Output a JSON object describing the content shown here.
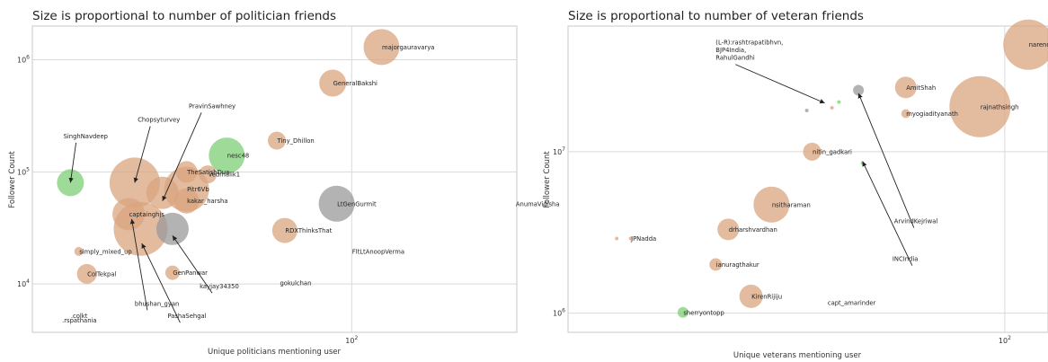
{
  "colors": {
    "default": "#d9a47f",
    "green": "#7fcf76",
    "gray": "#9a9a9a",
    "axis_bg": "#ffffff",
    "grid": "#d9d9d9",
    "arrow": "#222222"
  },
  "chart_data": [
    {
      "type": "scatter",
      "title": "Size is proportional to number of politician friends",
      "xlabel": "Unique politicians mentioning user",
      "ylabel": "Follower Count",
      "xscale": "log",
      "yscale": "log",
      "xlim": [
        17,
        250
      ],
      "ylim": [
        3700,
        2000000
      ],
      "x_ticks": [
        {
          "value": 100,
          "label": "10^2"
        }
      ],
      "y_ticks": [
        {
          "value": 10000,
          "label": "10^4"
        },
        {
          "value": 100000,
          "label": "10^5"
        },
        {
          "value": 1000000,
          "label": "10^6"
        }
      ],
      "grid": true,
      "points": [
        {
          "label": "majorgauravarya",
          "x": 118,
          "y": 1300000,
          "size": 20,
          "color": "default"
        },
        {
          "label": "GeneralBakshi",
          "x": 90,
          "y": 620000,
          "size": 15,
          "color": "default"
        },
        {
          "label": "Tiny_Dhillon",
          "x": 66,
          "y": 190000,
          "size": 10,
          "color": "default"
        },
        {
          "label": "nesc48",
          "x": 50,
          "y": 140000,
          "size": 20,
          "color": "green"
        },
        {
          "label": "TheSatishDua",
          "x": 40,
          "y": 100000,
          "size": 12,
          "color": "default"
        },
        {
          "label": "Vedmalik1",
          "x": 45,
          "y": 95000,
          "size": 10,
          "color": "default"
        },
        {
          "label": "Pitr6Vb",
          "x": 40,
          "y": 70000,
          "size": 25,
          "color": "default"
        },
        {
          "label": "SinghNavdeep",
          "x": 21,
          "y": 80000,
          "size": 15,
          "color": "green"
        },
        {
          "label": "Chopsyturvey",
          "x": 30,
          "y": 80000,
          "size": 28,
          "color": "default"
        },
        {
          "label": "PravinSawhney",
          "x": 35,
          "y": 65000,
          "size": 18,
          "color": "default"
        },
        {
          "label": "kakar_harsha",
          "x": 40,
          "y": 55000,
          "size": 14,
          "color": "default"
        },
        {
          "label": "LtGenGurmit",
          "x": 92,
          "y": 52000,
          "size": 20,
          "color": "gray"
        },
        {
          "label": "AnumaVidisha",
          "x": 248,
          "y": 52000,
          "size": 0,
          "color": "default"
        },
        {
          "label": "captainghjs",
          "x": 29,
          "y": 42000,
          "size": 18,
          "color": "default"
        },
        {
          "label": "captainghjs-large",
          "x": 31,
          "y": 31000,
          "size": 30,
          "color": "default"
        },
        {
          "label": "RDXThinksThat",
          "x": 69,
          "y": 30000,
          "size": 14,
          "color": "default"
        },
        {
          "label": "kayjay34350",
          "x": 37,
          "y": 31000,
          "size": 18,
          "color": "gray"
        },
        {
          "label": "simply_mixed_up",
          "x": 22,
          "y": 19500,
          "size": 5,
          "color": "default"
        },
        {
          "label": "FltLtAnoopVerma",
          "x": 100,
          "y": 19500,
          "size": 0,
          "color": "default"
        },
        {
          "label": "ColTekpal",
          "x": 23,
          "y": 12300,
          "size": 11,
          "color": "default"
        },
        {
          "label": "GenPanwar",
          "x": 37,
          "y": 12600,
          "size": 8,
          "color": "default"
        },
        {
          "label": "gokulchan",
          "x": 67,
          "y": 10200,
          "size": 0,
          "color": "default"
        },
        {
          "label": ".colkt",
          "x": 21,
          "y": 5200,
          "size": 0,
          "color": "default"
        },
        {
          "label": ".rspathania",
          "x": 20,
          "y": 4750,
          "size": 0,
          "color": "default"
        }
      ],
      "annotations": [
        {
          "text": "SinghNavdeep",
          "tx": 20.2,
          "ty": 200000,
          "ax": 21,
          "ay": 80000
        },
        {
          "text": "Chopsyturvey",
          "tx": 30.5,
          "ty": 280000,
          "ax": 30,
          "ay": 80000
        },
        {
          "text": "PravinSawhney",
          "tx": 40.5,
          "ty": 370000,
          "ax": 35,
          "ay": 55000
        },
        {
          "text": "bhushan_gyan",
          "tx": 30,
          "ty": 6400,
          "ax": 29.5,
          "ay": 38000
        },
        {
          "text": "PashaSehgal",
          "tx": 36,
          "ty": 4950,
          "ax": 31.2,
          "ay": 23000
        },
        {
          "text": "kayjay34350",
          "tx": 43,
          "ty": 9100,
          "ax": 37,
          "ay": 27000
        }
      ]
    },
    {
      "type": "scatter",
      "title": "Size is proportional to number of veteran friends",
      "xlabel": "Unique veterans mentioning user",
      "ylabel": "Follower Count",
      "xscale": "log",
      "yscale": "log",
      "xlim": [
        10.5,
        125
      ],
      "ylim": [
        760000,
        60000000
      ],
      "x_ticks": [
        {
          "value": 100,
          "label": "10^2"
        }
      ],
      "y_ticks": [
        {
          "value": 1000000,
          "label": "10^6"
        },
        {
          "value": 10000000,
          "label": "10^7"
        }
      ],
      "grid": true,
      "points": [
        {
          "label": "narendramodi",
          "x": 113,
          "y": 46000000,
          "size": 28,
          "color": "default"
        },
        {
          "label": "AmitShah",
          "x": 60,
          "y": 25000000,
          "size": 12,
          "color": "default"
        },
        {
          "label": "rajnathsingh",
          "x": 88,
          "y": 19000000,
          "size": 34,
          "color": "default"
        },
        {
          "label": "myogiadityanath",
          "x": 60,
          "y": 17200000,
          "size": 5,
          "color": "default"
        },
        {
          "label": "nitin_gadkari",
          "x": 37,
          "y": 10000000,
          "size": 10,
          "color": "default"
        },
        {
          "label": "INCIndia",
          "x": 48,
          "y": 8500000,
          "size": 2,
          "color": "green"
        },
        {
          "label": "nsitharaman",
          "x": 30,
          "y": 4700000,
          "size": 20,
          "color": "default"
        },
        {
          "label": "drharshvardhan",
          "x": 24,
          "y": 3300000,
          "size": 12,
          "color": "default"
        },
        {
          "label": "JPNadda",
          "x": 14.5,
          "y": 2900000,
          "size": 2,
          "color": "default"
        },
        {
          "label": "JPNadda-dot",
          "x": 13.5,
          "y": 2900000,
          "size": 2,
          "color": "default"
        },
        {
          "label": "ianuragthakur",
          "x": 22.5,
          "y": 2000000,
          "size": 7,
          "color": "default"
        },
        {
          "label": "KirenRijiju",
          "x": 27,
          "y": 1270000,
          "size": 13,
          "color": "default"
        },
        {
          "label": "capt_amarinder",
          "x": 40,
          "y": 1160000,
          "size": 0,
          "color": "default"
        },
        {
          "label": "sherryontopp",
          "x": 19,
          "y": 1010000,
          "size": 6,
          "color": "green"
        },
        {
          "label": "ArvindKejriwal",
          "x": 47,
          "y": 24000000,
          "size": 6,
          "color": "gray"
        },
        {
          "label": "rashtrapatibhvn",
          "x": 36,
          "y": 18000000,
          "size": 2,
          "color": "gray"
        },
        {
          "label": "BJP4India",
          "x": 41,
          "y": 18700000,
          "size": 2,
          "color": "default"
        },
        {
          "label": "RahulGandhi",
          "x": 42.5,
          "y": 20300000,
          "size": 2,
          "color": "green"
        }
      ],
      "annotations": [
        {
          "text": "(L-R):rashtrapatibhvn,\nBJP4India,\nRahulGandhi",
          "tx": 22.5,
          "ty": 46000000,
          "ax": 39.5,
          "ay": 20000000
        },
        {
          "text": "ArvindKejriwal",
          "tx": 56.5,
          "ty": 3600000,
          "ax": 47,
          "ay": 23000000
        },
        {
          "text": "INCIndia",
          "tx": 56,
          "ty": 2100000,
          "ax": 48,
          "ay": 8700000
        }
      ]
    }
  ]
}
